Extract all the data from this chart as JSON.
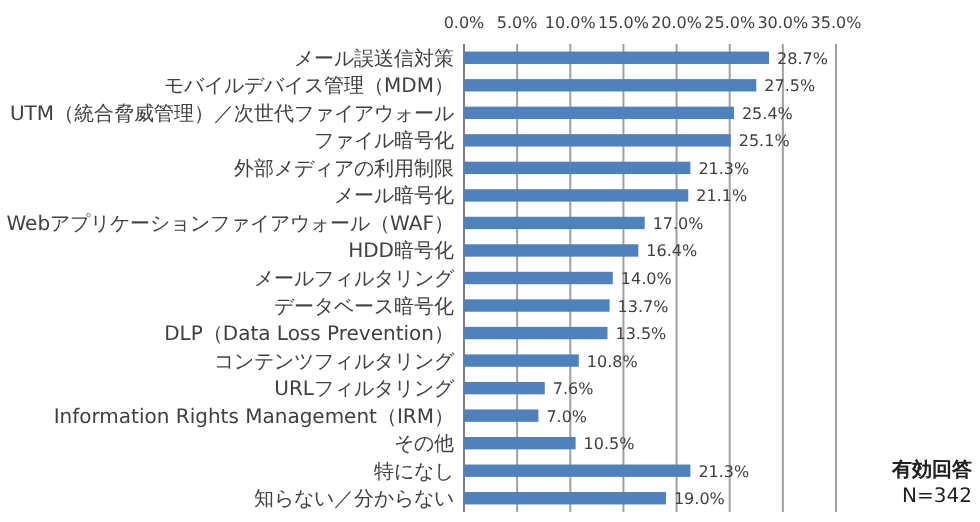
{
  "chart_data": {
    "type": "bar",
    "orientation": "horizontal",
    "categories": [
      "メール誤送信対策",
      "モバイルデバイス管理（MDM）",
      "UTM（統合脅威管理）／次世代ファイアウォール",
      "ファイル暗号化",
      "外部メディアの利用制限",
      "メール暗号化",
      "Webアプリケーションファイアウォール（WAF）",
      "HDD暗号化",
      "メールフィルタリング",
      "データベース暗号化",
      "DLP（Data Loss Prevention）",
      "コンテンツフィルタリング",
      "URLフィルタリング",
      "Information Rights Management（IRM）",
      "その他",
      "特になし",
      "知らない／分からない"
    ],
    "values": [
      28.7,
      27.5,
      25.4,
      25.1,
      21.3,
      21.1,
      17.0,
      16.4,
      14.0,
      13.7,
      13.5,
      10.8,
      7.6,
      7.0,
      10.5,
      21.3,
      19.0
    ],
    "value_labels": [
      "28.7%",
      "27.5%",
      "25.4%",
      "25.1%",
      "21.3%",
      "21.1%",
      "17.0%",
      "16.4%",
      "14.0%",
      "13.7%",
      "13.5%",
      "10.8%",
      "7.6%",
      "7.0%",
      "10.5%",
      "21.3%",
      "19.0%"
    ],
    "color": "#4f81bd",
    "xlim": [
      0,
      35
    ],
    "xticks": [
      {
        "value": 0,
        "label": "0.0%"
      },
      {
        "value": 5,
        "label": "5.0%"
      },
      {
        "value": 10,
        "label": "10.0%"
      },
      {
        "value": 15,
        "label": "15.0%"
      },
      {
        "value": 20,
        "label": "20.0%"
      },
      {
        "value": 25,
        "label": "25.0%"
      },
      {
        "value": 30,
        "label": "30.0%"
      },
      {
        "value": 35,
        "label": "35.0%"
      }
    ],
    "grid": "x",
    "annotations": [
      "有効回答",
      "N=342"
    ]
  }
}
